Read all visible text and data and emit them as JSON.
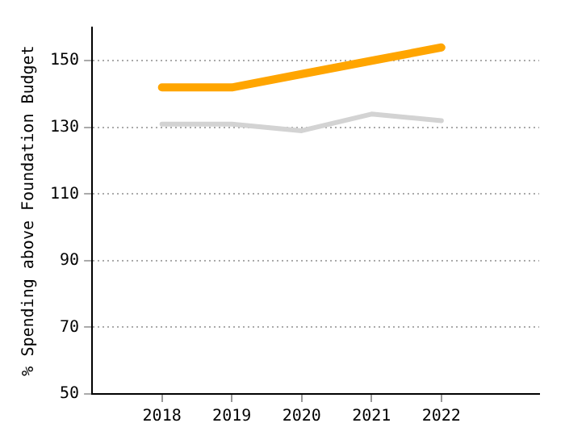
{
  "chart_data": {
    "type": "line",
    "ylabel": "% Spending above Foundation Budget",
    "x": [
      2018,
      2019,
      2020,
      2021,
      2022
    ],
    "series": [
      {
        "color": "#ffa500",
        "values": [
          142,
          142,
          146,
          150,
          154
        ]
      },
      {
        "color": "#d3d3d3",
        "values": [
          131,
          131,
          129,
          134,
          132
        ]
      }
    ],
    "xlim": [
      2017,
      2023.4
    ],
    "xticks": [
      2018,
      2019,
      2020,
      2021,
      2022
    ],
    "ylim": [
      50,
      160
    ],
    "yticks": [
      50,
      70,
      90,
      110,
      130,
      150
    ],
    "grid": "y",
    "legend": false,
    "marker": "none",
    "line_style": "solid"
  }
}
